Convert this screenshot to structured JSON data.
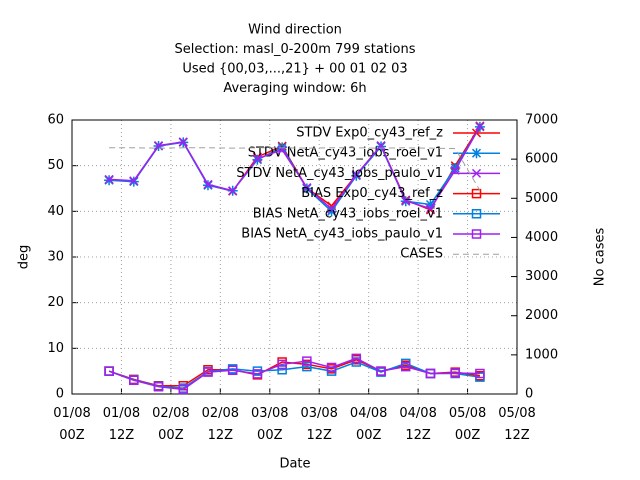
{
  "chart_data": {
    "type": "line",
    "title": [
      "Wind direction",
      "Selection: masl_0-200m    799 stations",
      "Used {00,03,...,21} + 00 01 02 03",
      "Averaging window:  6h"
    ],
    "x_label": "Date",
    "y_label": "deg",
    "y2_label": "No cases",
    "x": [
      9,
      15,
      21,
      27,
      33,
      39,
      45,
      51,
      57,
      63,
      69,
      75,
      81,
      87,
      93,
      99
    ],
    "xlim": [
      0,
      108
    ],
    "xticks": [
      {
        "value": 0,
        "label": [
          "01/08",
          "00Z"
        ]
      },
      {
        "value": 12,
        "label": [
          "01/08",
          "12Z"
        ]
      },
      {
        "value": 24,
        "label": [
          "02/08",
          "00Z"
        ]
      },
      {
        "value": 36,
        "label": [
          "02/08",
          "12Z"
        ]
      },
      {
        "value": 48,
        "label": [
          "03/08",
          "00Z"
        ]
      },
      {
        "value": 60,
        "label": [
          "03/08",
          "12Z"
        ]
      },
      {
        "value": 72,
        "label": [
          "04/08",
          "00Z"
        ]
      },
      {
        "value": 84,
        "label": [
          "04/08",
          "12Z"
        ]
      },
      {
        "value": 96,
        "label": [
          "05/08",
          "00Z"
        ]
      },
      {
        "value": 108,
        "label": [
          "05/08",
          "12Z"
        ]
      }
    ],
    "ylim": [
      0,
      60
    ],
    "yticks": [
      0,
      10,
      20,
      30,
      40,
      50,
      60
    ],
    "y2lim": [
      0,
      7000
    ],
    "y2ticks": [
      0,
      1000,
      2000,
      3000,
      4000,
      5000,
      6000,
      7000
    ],
    "grid": true,
    "series": [
      {
        "name": "STDV Exp0_cy43_ref_z",
        "color": "#ff0000",
        "marker": "x",
        "values": [
          46.9,
          46.6,
          54.3,
          55.2,
          45.8,
          44.4,
          51.9,
          54.3,
          45.1,
          41.2,
          48,
          54.3,
          42.5,
          40.3,
          50,
          58.7
        ]
      },
      {
        "name": "STDV NetA_cy43_iobs_roel_v1",
        "color": "#0080e0",
        "marker": "star",
        "values": [
          46.8,
          46.5,
          54.3,
          55.1,
          45.7,
          44.5,
          51.3,
          54,
          45,
          40,
          47.8,
          54.2,
          42.2,
          41.5,
          49.5,
          58.5
        ]
      },
      {
        "name": "STDV NetA_cy43_iobs_paulo_v1",
        "color": "#a020f0",
        "marker": "x",
        "values": [
          47,
          46.7,
          54.4,
          55.2,
          45.9,
          44.5,
          51.5,
          53.5,
          45.2,
          40.5,
          48,
          54.4,
          42.3,
          40.6,
          49,
          58.6
        ]
      },
      {
        "name": "BIAS Exp0_cy43_ref_z",
        "color": "#ff0000",
        "marker": "square",
        "values": [
          5,
          3.2,
          1.8,
          1.8,
          5.3,
          5.3,
          4.2,
          7,
          6.5,
          5.5,
          7.5,
          5,
          6.3,
          4.5,
          4.8,
          4
        ]
      },
      {
        "name": "BIAS NetA_cy43_iobs_roel_v1",
        "color": "#0080e0",
        "marker": "square",
        "values": [
          5,
          3.1,
          1.7,
          1.3,
          4.9,
          5.5,
          5,
          5.3,
          6,
          5,
          7,
          4.8,
          6.7,
          4.5,
          4.5,
          3.7
        ]
      },
      {
        "name": "BIAS NetA_cy43_iobs_paulo_v1",
        "color": "#a020f0",
        "marker": "square",
        "values": [
          5,
          3,
          1.6,
          1,
          4.8,
          5.2,
          4.4,
          6.5,
          7.2,
          5.8,
          7.8,
          5,
          6,
          4.5,
          4.6,
          4.5
        ]
      },
      {
        "name": "CASES",
        "color": "#a0a0a0",
        "marker": "none",
        "dash": true,
        "axis": "y2",
        "values": [
          6290,
          6290,
          6280,
          6290,
          6290,
          6280,
          6290,
          6290,
          6280,
          6290,
          6290,
          6280,
          6290,
          6280,
          6270,
          5200
        ]
      }
    ]
  }
}
